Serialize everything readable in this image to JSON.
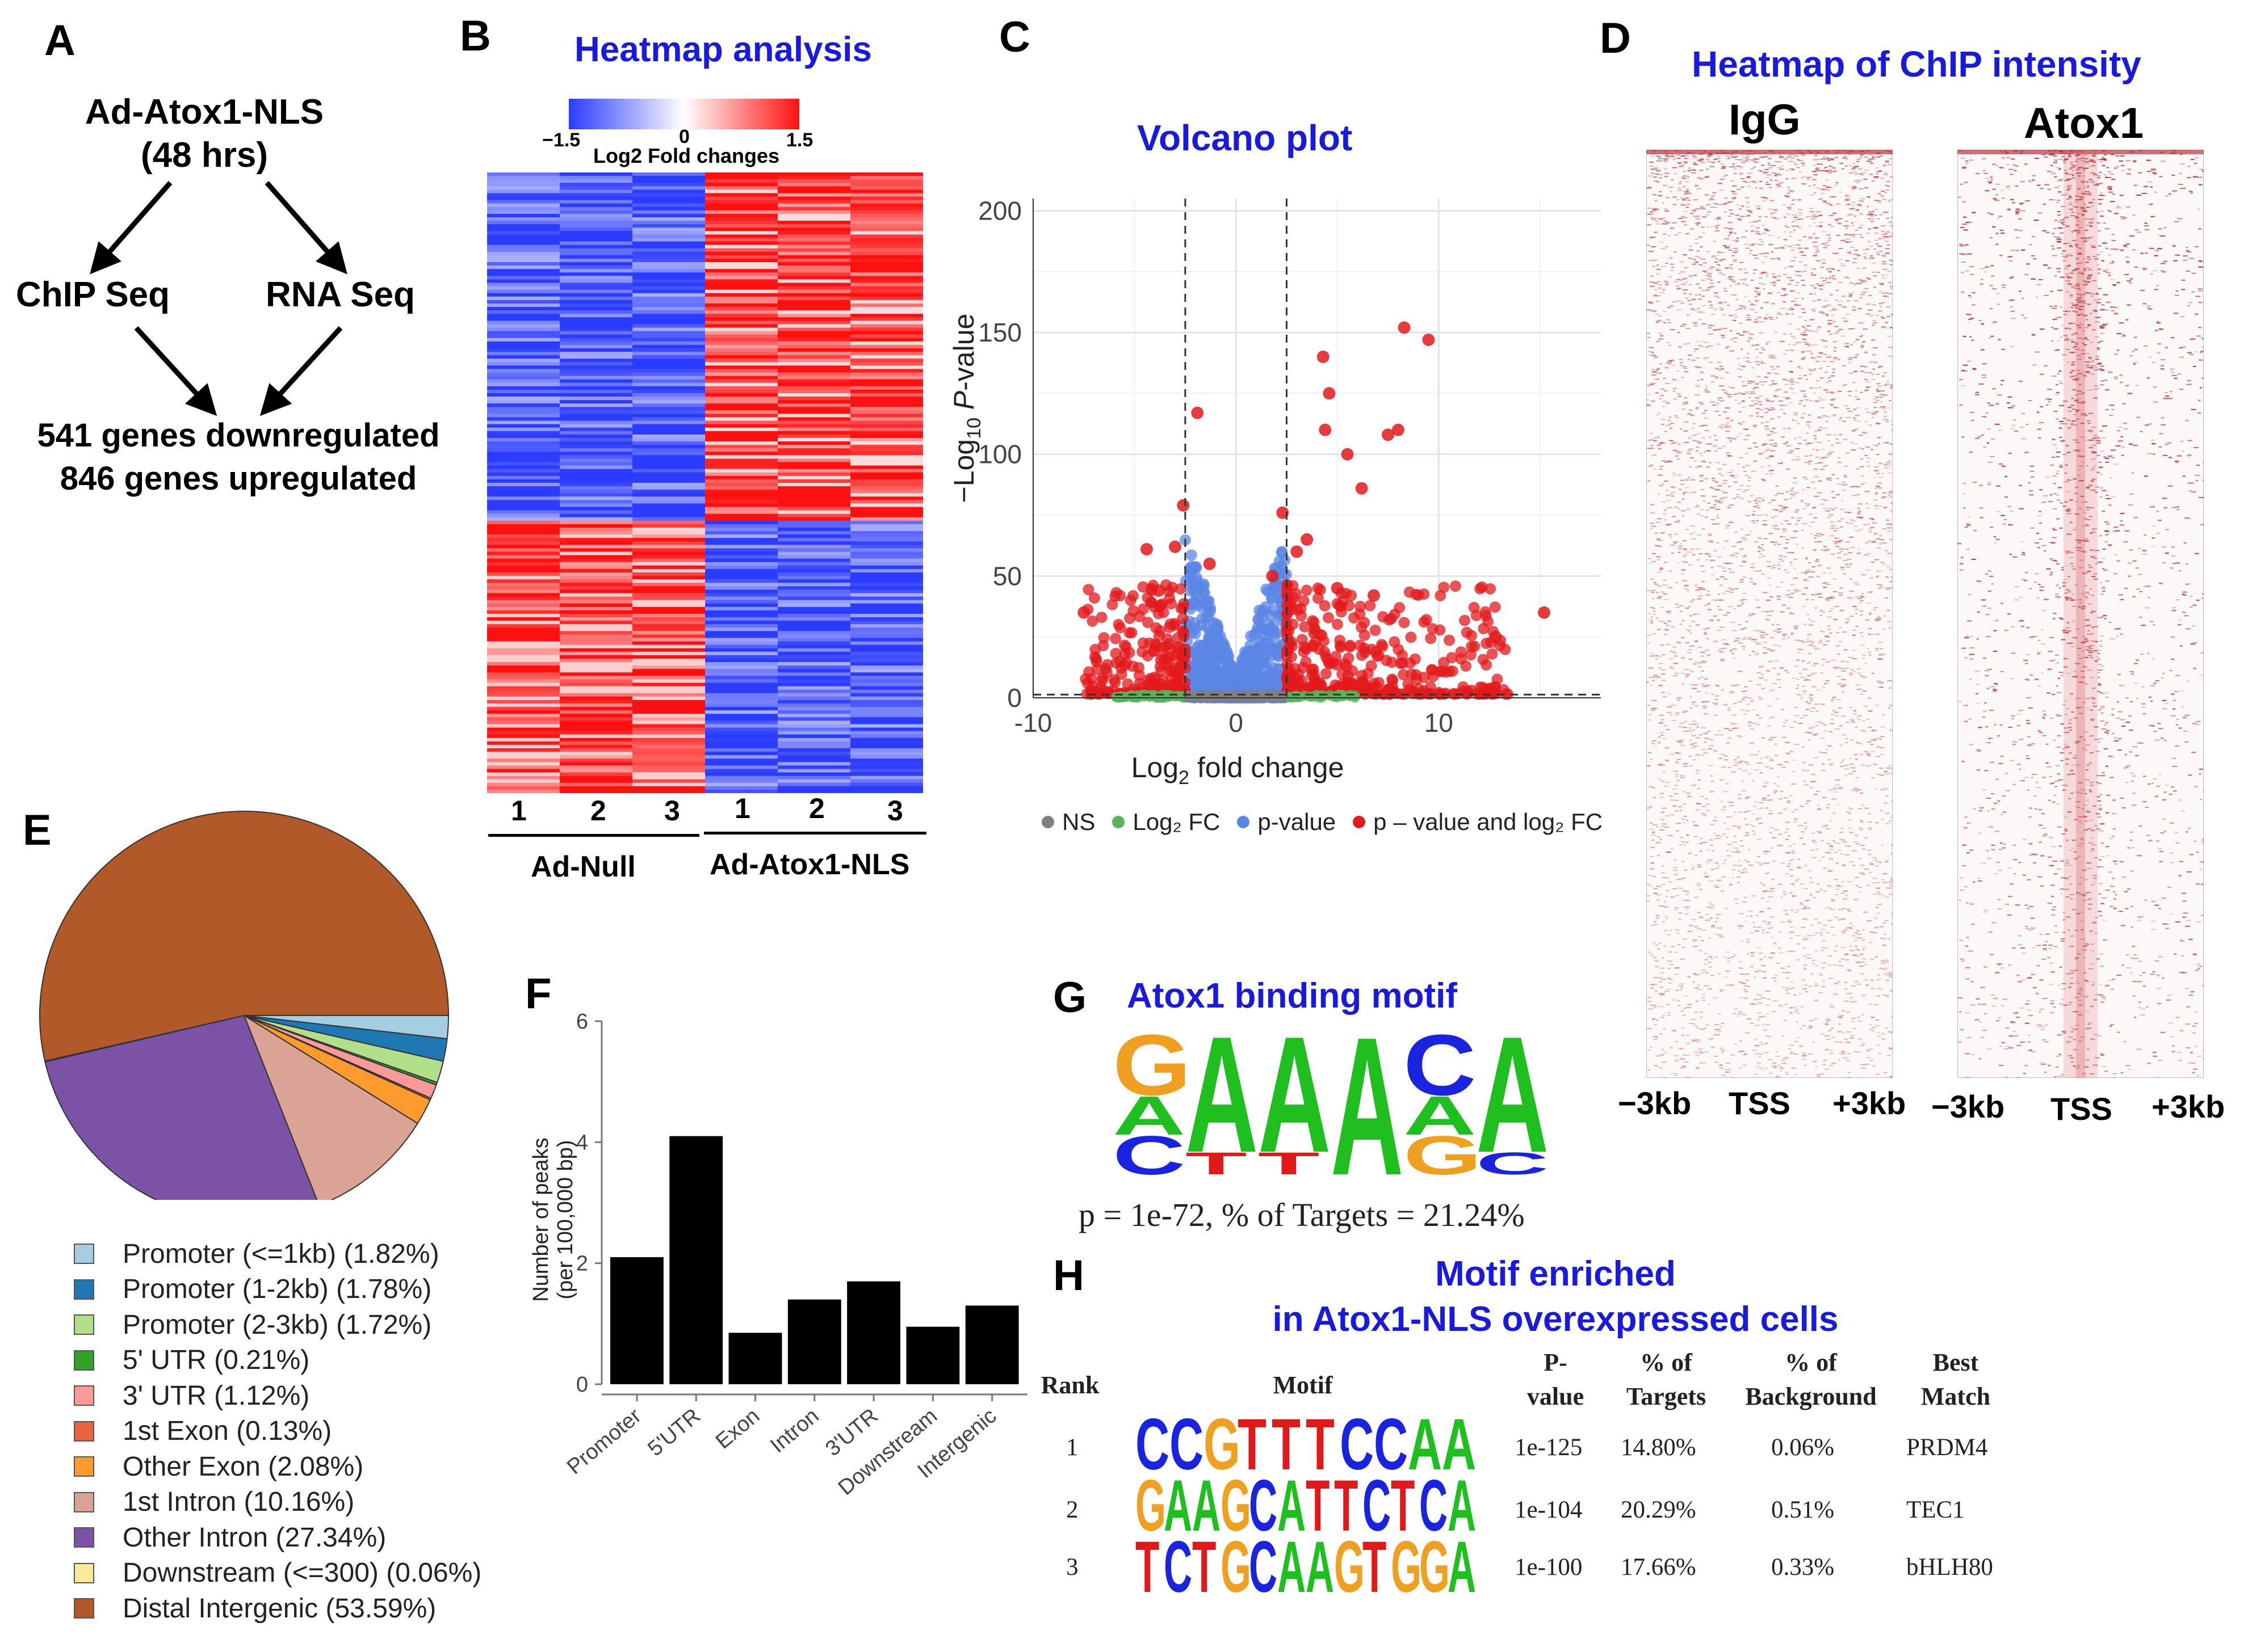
{
  "panel_letters": {
    "a": "A",
    "b": "B",
    "c": "C",
    "d": "D",
    "e": "E",
    "f": "F",
    "g": "G",
    "h": "H"
  },
  "panel_a": {
    "top_line1": "Ad-Atox1-NLS",
    "top_line2": "(48 hrs)",
    "left_node": "ChIP Seq",
    "right_node": "RNA Seq",
    "result_line1": "541 genes downregulated",
    "result_line2": "846 genes upregulated"
  },
  "panel_b": {
    "title": "Heatmap analysis",
    "colorbar_min": "−1.5",
    "colorbar_mid": "0",
    "colorbar_max": "1.5",
    "colorbar_label": "Log2 Fold changes",
    "column_labels": [
      "1",
      "2",
      "3",
      "1",
      "2",
      "3"
    ],
    "group_left": "Ad-Null",
    "group_right": "Ad-Atox1-NLS",
    "colors": {
      "low": "#2b3bff",
      "mid": "#ffffff",
      "high": "#ff1010"
    }
  },
  "panel_c": {
    "title": "Volcano plot",
    "legend": {
      "ns": "NS",
      "log2fc": "Log₂ FC",
      "pvalue": "p-value",
      "both": "p – value and log₂ FC"
    },
    "colors": {
      "ns": "#7f7f7f",
      "fc": "#58b35a",
      "p": "#5b86e5",
      "both": "#e31a1c"
    },
    "chart_data": {
      "type": "scatter",
      "title": "Volcano plot",
      "xlabel": "Log2 fold change",
      "ylabel": "−Log10 P-value",
      "xlim": [
        -10,
        18
      ],
      "ylim": [
        0,
        205
      ],
      "x_ticks": [
        -10,
        0,
        10
      ],
      "y_ticks": [
        0,
        50,
        100,
        150,
        200
      ],
      "x_tick_labels": [
        "-10",
        "0",
        "10"
      ],
      "y_tick_labels": [
        "0",
        "50",
        "100",
        "150",
        "200"
      ],
      "fc_cutoffs": [
        -2.5,
        2.5
      ],
      "p_cutoff": 1.3,
      "highlighted_points": [
        {
          "x": 9.5,
          "y": 147
        },
        {
          "x": 8.3,
          "y": 152
        },
        {
          "x": 4.3,
          "y": 140
        },
        {
          "x": 4.6,
          "y": 125
        },
        {
          "x": -1.9,
          "y": 117
        },
        {
          "x": 4.4,
          "y": 110
        },
        {
          "x": 5.5,
          "y": 100
        },
        {
          "x": 7.5,
          "y": 108
        },
        {
          "x": 8.0,
          "y": 110
        },
        {
          "x": 6.2,
          "y": 86
        },
        {
          "x": -2.6,
          "y": 79
        },
        {
          "x": 3.5,
          "y": 65
        },
        {
          "x": -4.4,
          "y": 61
        },
        {
          "x": -7.5,
          "y": 35
        },
        {
          "x": 15.2,
          "y": 35
        },
        {
          "x": 12.8,
          "y": 25
        },
        {
          "x": -3.0,
          "y": 62
        },
        {
          "x": 2.3,
          "y": 76
        },
        {
          "x": -1.3,
          "y": 55
        },
        {
          "x": 1.8,
          "y": 50
        },
        {
          "x": 5.0,
          "y": 45
        },
        {
          "x": 6.8,
          "y": 42
        },
        {
          "x": -3.8,
          "y": 44
        },
        {
          "x": 3.0,
          "y": 60
        }
      ]
    }
  },
  "panel_d": {
    "title": "Heatmap  of ChIP intensity",
    "left_label": "IgG",
    "right_label": "Atox1",
    "axis_left": [
      "−3kb",
      "TSS",
      "+3kb"
    ],
    "axis_right": [
      "−3kb",
      "TSS",
      "+3kb"
    ]
  },
  "panel_e": {
    "chart_data": {
      "type": "pie",
      "labels": [
        "Promoter (<=1kb)",
        "Promoter (1-2kb)",
        "Promoter (2-3kb)",
        "5' UTR",
        "3' UTR",
        "1st Exon",
        "Other Exon",
        "1st Intron",
        "Other Intron",
        "Downstream (<=300)",
        "Distal Intergenic"
      ],
      "values": [
        1.82,
        1.78,
        1.72,
        0.21,
        1.12,
        0.13,
        2.08,
        10.16,
        27.34,
        0.06,
        53.59
      ],
      "colors": [
        "#a6cee3",
        "#1f78b4",
        "#b2df8a",
        "#33a02c",
        "#fb9a99",
        "#e8643c",
        "#ff9a2e",
        "#dba395",
        "#7b52a6",
        "#fbe99a",
        "#b15928"
      ]
    },
    "legend_texts": [
      "Promoter (<=1kb) (1.82%)",
      "Promoter (1-2kb) (1.78%)",
      "Promoter (2-3kb) (1.72%)",
      "5' UTR (0.21%)",
      "3' UTR (1.12%)",
      "1st Exon (0.13%)",
      "Other Exon (2.08%)",
      "1st Intron (10.16%)",
      "Other Intron (27.34%)",
      "Downstream (<=300) (0.06%)",
      "Distal Intergenic (53.59%)"
    ]
  },
  "panel_f": {
    "chart_data": {
      "type": "bar",
      "categories": [
        "Promoter",
        "5'UTR",
        "Exon",
        "Intron",
        "3'UTR",
        "Downstream",
        "Intergenic"
      ],
      "values": [
        2.1,
        4.1,
        0.85,
        1.4,
        1.7,
        0.95,
        1.3
      ],
      "ylabel": "Number of peaks (per 100,000 bp)",
      "ylabel_line1": "Number of peaks",
      "ylabel_line2": "(per 100,000 bp)",
      "ylim": [
        0,
        6
      ],
      "y_ticks": [
        0,
        2,
        4,
        6
      ],
      "y_tick_labels": [
        "0",
        "2",
        "4",
        "6"
      ]
    }
  },
  "panel_g": {
    "title": "Atox1 binding motif",
    "stats": "p = 1e-72, % of Targets = 21.24%",
    "motif_letters": [
      "G",
      "A",
      "A",
      "A",
      "C",
      "A"
    ],
    "motif_sub": [
      "A",
      "",
      "",
      "",
      "A",
      ""
    ],
    "motif_bottom": [
      "C",
      "T",
      "T",
      "",
      "G",
      "C"
    ]
  },
  "panel_h": {
    "title_line1": "Motif enriched",
    "title_line2": "in Atox1-NLS overexpressed cells",
    "headers": {
      "rank": "Rank",
      "motif": "Motif",
      "pvalue": "P-\nvalue",
      "targets": "% of\nTargets",
      "background": "% of\nBackground",
      "best": "Best\nMatch"
    },
    "rows": [
      {
        "rank": "1",
        "motif": "CCGTTTCCAA",
        "pvalue": "1e-125",
        "targets": "14.80%",
        "background": "0.06%",
        "best": "PRDM4"
      },
      {
        "rank": "2",
        "motif": "GAAGCATTCTCA",
        "pvalue": "1e-104",
        "targets": "20.29%",
        "background": "0.51%",
        "best": "TEC1"
      },
      {
        "rank": "3",
        "motif": "TCTGCAAGTGGA",
        "pvalue": "1e-100",
        "targets": "17.66%",
        "background": "0.33%",
        "best": "bHLH80"
      }
    ],
    "nucleotide_colors": {
      "A": "#1fbf1f",
      "C": "#1a24e0",
      "G": "#f0a020",
      "T": "#e01a1a"
    }
  }
}
